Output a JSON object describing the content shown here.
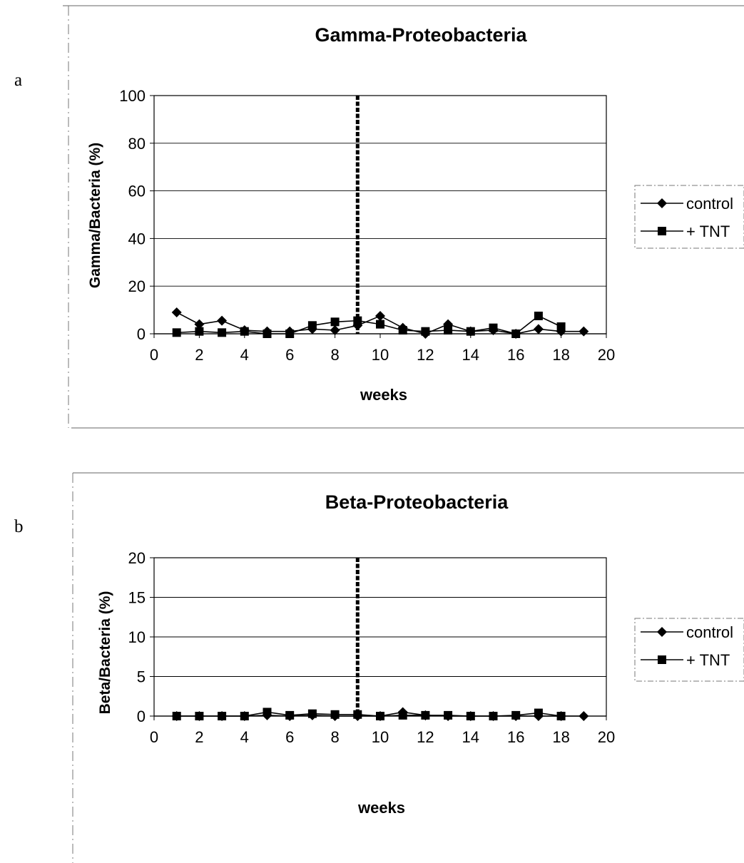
{
  "chart_data": [
    {
      "type": "line",
      "panel_label": "a",
      "title": "Gamma-Proteobacteria",
      "xlabel": "weeks",
      "ylabel": "Gamma/Bacteria (%)",
      "xlim": [
        0,
        20
      ],
      "ylim": [
        0,
        100
      ],
      "x_ticks": [
        0,
        2,
        4,
        6,
        8,
        10,
        12,
        14,
        16,
        18,
        20
      ],
      "y_ticks": [
        0,
        20,
        40,
        60,
        80,
        100
      ],
      "grid": true,
      "legend_position": "right",
      "vertical_marker_x": 9,
      "series": [
        {
          "name": "control",
          "marker": "diamond",
          "x": [
            1,
            2,
            3,
            4,
            5,
            6,
            7,
            8,
            9,
            10,
            11,
            12,
            13,
            14,
            15,
            16,
            17,
            18,
            19
          ],
          "values": [
            9,
            4,
            5.5,
            1.5,
            1,
            1,
            2,
            1.5,
            3.5,
            7.5,
            2.5,
            0,
            4,
            1,
            1.5,
            0,
            2,
            1,
            1
          ]
        },
        {
          "name": "+ TNT",
          "marker": "square",
          "x": [
            1,
            2,
            3,
            4,
            5,
            6,
            7,
            8,
            9,
            10,
            11,
            12,
            13,
            14,
            15,
            16,
            17,
            18
          ],
          "values": [
            0.5,
            1,
            0.5,
            1,
            0,
            0,
            3.5,
            5,
            5.5,
            4,
            1.5,
            1,
            1.5,
            1,
            2.5,
            0,
            7.5,
            3
          ]
        }
      ]
    },
    {
      "type": "line",
      "panel_label": "b",
      "title": "Beta-Proteobacteria",
      "xlabel": "weeks",
      "ylabel": "Beta/Bacteria (%)",
      "xlim": [
        0,
        20
      ],
      "ylim": [
        0,
        20
      ],
      "x_ticks": [
        0,
        2,
        4,
        6,
        8,
        10,
        12,
        14,
        16,
        18,
        20
      ],
      "y_ticks": [
        0,
        5,
        10,
        15,
        20
      ],
      "grid": true,
      "legend_position": "right",
      "vertical_marker_x": 9,
      "series": [
        {
          "name": "control",
          "marker": "diamond",
          "x": [
            1,
            2,
            3,
            4,
            5,
            6,
            7,
            8,
            9,
            10,
            11,
            12,
            13,
            14,
            15,
            16,
            17,
            18,
            19
          ],
          "values": [
            0,
            0,
            0,
            0,
            0.1,
            0,
            0.1,
            0,
            0,
            0,
            0.5,
            0.1,
            0,
            0,
            0,
            0,
            0,
            0,
            0
          ]
        },
        {
          "name": "+ TNT",
          "marker": "square",
          "x": [
            1,
            2,
            3,
            4,
            5,
            6,
            7,
            8,
            9,
            10,
            11,
            12,
            13,
            14,
            15,
            16,
            17,
            18
          ],
          "values": [
            0,
            0,
            0,
            0,
            0.5,
            0.1,
            0.3,
            0.2,
            0.2,
            0,
            0.1,
            0.1,
            0.1,
            0,
            0,
            0.1,
            0.4,
            0
          ]
        }
      ]
    }
  ]
}
